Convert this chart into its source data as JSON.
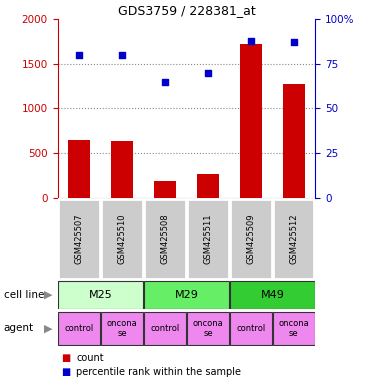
{
  "title": "GDS3759 / 228381_at",
  "samples": [
    "GSM425507",
    "GSM425510",
    "GSM425508",
    "GSM425511",
    "GSM425509",
    "GSM425512"
  ],
  "counts": [
    650,
    640,
    185,
    270,
    1720,
    1270
  ],
  "percentile_ranks": [
    80,
    80,
    65,
    70,
    88,
    87
  ],
  "left_ylim": [
    0,
    2000
  ],
  "right_ylim": [
    0,
    100
  ],
  "left_yticks": [
    0,
    500,
    1000,
    1500,
    2000
  ],
  "right_yticks": [
    0,
    25,
    50,
    75,
    100
  ],
  "right_yticklabels": [
    "0",
    "25",
    "50",
    "75",
    "100%"
  ],
  "bar_color": "#cc0000",
  "dot_color": "#0000cc",
  "cell_line_colors": [
    "#ccffcc",
    "#66ee66",
    "#33cc33"
  ],
  "cell_line_labels": [
    "M25",
    "M29",
    "M49"
  ],
  "cell_line_spans": [
    [
      0,
      2
    ],
    [
      2,
      4
    ],
    [
      4,
      6
    ]
  ],
  "agent_color": "#ee88ee",
  "agent_labels": [
    "control",
    "oncona\nse",
    "control",
    "oncona\nse",
    "control",
    "oncona\nse"
  ],
  "sample_box_color": "#cccccc",
  "cell_line_row_label": "cell line",
  "agent_row_label": "agent",
  "legend_count_label": "count",
  "legend_percentile_label": "percentile rank within the sample",
  "left_tick_color": "#cc0000",
  "right_tick_color": "#0000cc",
  "bar_width": 0.5
}
